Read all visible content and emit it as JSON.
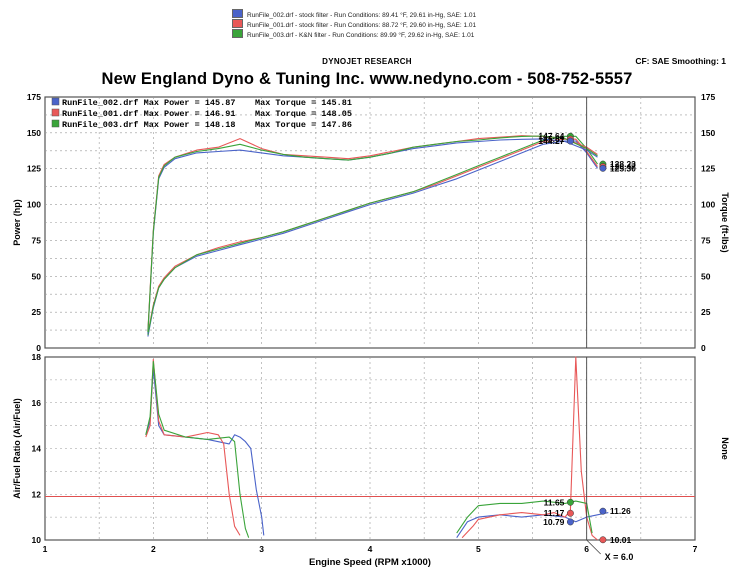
{
  "header": {
    "runs": [
      {
        "name": "RunFile_002.drf - stock filter - Run Conditions: 89.41 °F, 29.61 in-Hg, SAE: 1.01",
        "color": "#4a63c9"
      },
      {
        "name": "RunFile_001.drf - stock filter - Run Conditions: 88.72 °F, 29.60 in-Hg, SAE: 1.01",
        "color": "#e85858"
      },
      {
        "name": "RunFile_003.drf - K&N filter - Run Conditions: 89.99 °F, 29.62 in-Hg, SAE: 1.01",
        "color": "#3aa43a"
      }
    ],
    "brand": "DYNOJET RESEARCH",
    "settings": "CF: SAE  Smoothing: 1",
    "shop": "New England Dyno & Tuning Inc.  www.nedyno.com - 508-752-5557"
  },
  "chart_data": [
    {
      "type": "line",
      "ylabel": "Power (hp)",
      "y2label": "Torque (ft-lbs)",
      "xlim": [
        1,
        7
      ],
      "ylim": [
        0,
        175
      ],
      "y2lim": [
        0,
        175
      ],
      "yticks": [
        "0",
        "25",
        "50",
        "75",
        "100",
        "125",
        "150",
        "175"
      ],
      "grid": true,
      "legend_lines": [
        {
          "run": "RunFile_002.drf",
          "power": "Max Power = 145.87",
          "torque": "Max Torque = 145.81",
          "color": "#4a63c9"
        },
        {
          "run": "RunFile_001.drf",
          "power": "Max Power = 146.91",
          "torque": "Max Torque = 148.05",
          "color": "#e85858"
        },
        {
          "run": "RunFile_003.drf",
          "power": "Max Power = 148.18",
          "torque": "Max Torque = 147.86",
          "color": "#3aa43a"
        }
      ],
      "series": [
        {
          "kind": "power",
          "color": "#4a63c9",
          "x": [
            1.95,
            2.0,
            2.05,
            2.1,
            2.2,
            2.4,
            2.6,
            2.8,
            3.0,
            3.2,
            3.4,
            3.6,
            3.8,
            4.0,
            4.2,
            4.4,
            4.6,
            4.8,
            5.0,
            5.2,
            5.4,
            5.6,
            5.8,
            5.9,
            6.0,
            6.1
          ],
          "y": [
            8,
            28,
            42,
            48,
            56,
            64,
            68,
            72,
            76,
            80,
            85,
            90,
            95,
            100,
            104,
            108,
            113,
            118,
            124,
            130,
            136,
            142,
            144.3,
            144.3,
            136,
            125.3
          ]
        },
        {
          "kind": "power",
          "color": "#e85858",
          "x": [
            1.95,
            2.0,
            2.05,
            2.1,
            2.2,
            2.4,
            2.6,
            2.8,
            3.0,
            3.2,
            3.4,
            3.6,
            3.8,
            4.0,
            4.2,
            4.4,
            4.6,
            4.8,
            5.0,
            5.2,
            5.4,
            5.6,
            5.8,
            5.9,
            6.0,
            6.1
          ],
          "y": [
            10,
            30,
            43,
            49,
            57,
            65,
            70,
            74,
            77,
            81,
            86,
            91,
            96,
            101,
            105,
            109,
            114,
            120,
            126,
            132,
            138,
            144,
            145.6,
            145.6,
            137,
            126.5
          ]
        },
        {
          "kind": "power",
          "color": "#3aa43a",
          "x": [
            1.95,
            2.0,
            2.05,
            2.1,
            2.2,
            2.4,
            2.6,
            2.8,
            3.0,
            3.2,
            3.4,
            3.6,
            3.8,
            4.0,
            4.2,
            4.4,
            4.6,
            4.8,
            5.0,
            5.2,
            5.4,
            5.6,
            5.8,
            5.9,
            6.0,
            6.1
          ],
          "y": [
            9,
            29,
            42,
            48,
            56,
            65,
            69,
            73,
            77,
            81,
            86,
            91,
            96,
            101,
            105,
            109,
            115,
            121,
            127,
            133,
            139,
            145,
            147.6,
            147.6,
            139,
            128.2
          ]
        },
        {
          "kind": "torque",
          "color": "#4a63c9",
          "x": [
            1.95,
            2.0,
            2.05,
            2.1,
            2.2,
            2.4,
            2.6,
            2.8,
            3.0,
            3.2,
            3.4,
            3.6,
            3.8,
            4.0,
            4.2,
            4.4,
            4.6,
            4.8,
            5.0,
            5.2,
            5.4,
            5.6,
            5.8,
            6.0,
            6.1
          ],
          "y": [
            10,
            80,
            118,
            126,
            132,
            136,
            137,
            138,
            136,
            134,
            133,
            132,
            131,
            133,
            136,
            139,
            141,
            143,
            144,
            145,
            145.5,
            145.8,
            144,
            138,
            133
          ]
        },
        {
          "kind": "torque",
          "color": "#e85858",
          "x": [
            1.95,
            2.0,
            2.05,
            2.1,
            2.2,
            2.4,
            2.6,
            2.8,
            3.0,
            3.2,
            3.4,
            3.6,
            3.8,
            4.0,
            4.2,
            4.4,
            4.6,
            4.8,
            5.0,
            5.2,
            5.4,
            5.6,
            5.8,
            6.0,
            6.1
          ],
          "y": [
            12,
            82,
            120,
            128,
            133,
            138,
            140,
            146,
            139,
            135,
            134,
            133,
            132,
            134,
            137,
            140,
            142,
            144,
            146,
            147,
            148,
            147.5,
            146,
            140,
            135
          ]
        },
        {
          "kind": "torque",
          "color": "#3aa43a",
          "x": [
            1.95,
            2.0,
            2.05,
            2.1,
            2.2,
            2.4,
            2.6,
            2.8,
            3.0,
            3.2,
            3.4,
            3.6,
            3.8,
            4.0,
            4.2,
            4.4,
            4.6,
            4.8,
            5.0,
            5.2,
            5.4,
            5.6,
            5.8,
            6.0,
            6.1
          ],
          "y": [
            11,
            81,
            119,
            127,
            133,
            137,
            139,
            142,
            138,
            135,
            133,
            132,
            131,
            133,
            136,
            140,
            142,
            144,
            145,
            146.5,
            147.5,
            147.8,
            146,
            139,
            134
          ]
        }
      ],
      "markers": [
        {
          "x": 5.85,
          "y": 147.64,
          "label": "147.64",
          "color": "#3aa43a",
          "side": "left"
        },
        {
          "x": 5.85,
          "y": 145.61,
          "label": "145.61",
          "color": "#e85858",
          "side": "left"
        },
        {
          "x": 5.85,
          "y": 144.27,
          "label": "144.27",
          "color": "#4a63c9",
          "side": "left"
        },
        {
          "x": 6.15,
          "y": 128.23,
          "label": "128.23",
          "color": "#3aa43a",
          "side": "right"
        },
        {
          "x": 6.15,
          "y": 126.47,
          "label": "126.47",
          "color": "#e85858",
          "side": "right"
        },
        {
          "x": 6.15,
          "y": 125.3,
          "label": "125.30",
          "color": "#4a63c9",
          "side": "right"
        }
      ],
      "cursor_x": 6.0
    },
    {
      "type": "line",
      "ylabel": "Air/Fuel Ratio (Air/Fuel)",
      "y2label": "None",
      "xlabel": "Engine Speed (RPM x1000)",
      "xlim": [
        1,
        7
      ],
      "ylim": [
        10,
        18
      ],
      "xticks": [
        "1",
        "2",
        "3",
        "4",
        "5",
        "6",
        "7"
      ],
      "yticks": [
        "10",
        "12",
        "14",
        "16",
        "18"
      ],
      "grid": true,
      "reference_line": 11.9,
      "series": [
        {
          "segment": "low",
          "color": "#4a63c9",
          "x": [
            1.93,
            1.97,
            2.0,
            2.05,
            2.1,
            2.3,
            2.5,
            2.7,
            2.75,
            2.8,
            2.85,
            2.9,
            2.95,
            3.0,
            3.02
          ],
          "y": [
            14.6,
            15.2,
            17.5,
            15.0,
            14.6,
            14.5,
            14.4,
            14.2,
            14.6,
            14.5,
            14.3,
            14.0,
            12.2,
            11.0,
            10.2
          ]
        },
        {
          "segment": "low",
          "color": "#e85858",
          "x": [
            1.93,
            1.97,
            2.0,
            2.05,
            2.1,
            2.3,
            2.5,
            2.6,
            2.65,
            2.7,
            2.75,
            2.8
          ],
          "y": [
            14.5,
            15.0,
            17.9,
            15.2,
            14.6,
            14.5,
            14.7,
            14.6,
            14.2,
            12.0,
            10.6,
            10.2
          ]
        },
        {
          "segment": "low",
          "color": "#3aa43a",
          "x": [
            1.93,
            1.97,
            2.0,
            2.05,
            2.1,
            2.3,
            2.5,
            2.7,
            2.75,
            2.8,
            2.85,
            2.88
          ],
          "y": [
            14.6,
            15.4,
            17.8,
            15.5,
            14.8,
            14.5,
            14.4,
            14.5,
            14.3,
            12.0,
            10.5,
            10.1
          ]
        },
        {
          "segment": "high",
          "color": "#4a63c9",
          "x": [
            4.8,
            4.9,
            5.0,
            5.2,
            5.4,
            5.6,
            5.8,
            5.9,
            6.0,
            6.1,
            6.2
          ],
          "y": [
            10.1,
            10.8,
            11.0,
            11.1,
            11.0,
            11.1,
            11.0,
            10.8,
            11.0,
            11.1,
            11.2
          ]
        },
        {
          "segment": "high",
          "color": "#e85858",
          "x": [
            4.85,
            4.95,
            5.0,
            5.2,
            5.4,
            5.6,
            5.7,
            5.8,
            5.85,
            5.9,
            5.95,
            6.0,
            6.05,
            6.1
          ],
          "y": [
            10.1,
            10.6,
            10.9,
            11.1,
            11.2,
            11.1,
            11.2,
            11.0,
            11.3,
            18.0,
            13.0,
            11.0,
            10.2,
            10.0
          ]
        },
        {
          "segment": "high",
          "color": "#3aa43a",
          "x": [
            4.8,
            4.9,
            5.0,
            5.2,
            5.4,
            5.6,
            5.8,
            5.9,
            6.0,
            6.05
          ],
          "y": [
            10.3,
            11.0,
            11.5,
            11.6,
            11.6,
            11.7,
            11.6,
            11.7,
            11.6,
            10.3
          ]
        }
      ],
      "markers": [
        {
          "x": 5.85,
          "y": 11.65,
          "label": "11.65",
          "color": "#3aa43a",
          "side": "left"
        },
        {
          "x": 5.85,
          "y": 11.17,
          "label": "11.17",
          "color": "#e85858",
          "side": "left"
        },
        {
          "x": 5.85,
          "y": 10.79,
          "label": "10.79",
          "color": "#4a63c9",
          "side": "left"
        },
        {
          "x": 6.15,
          "y": 11.26,
          "label": "11.26",
          "color": "#4a63c9",
          "side": "right"
        },
        {
          "x": 6.15,
          "y": 10.01,
          "label": "10.01",
          "color": "#e85858",
          "side": "right"
        }
      ],
      "cursor_x": 6.0,
      "cursor_label": "X = 6.0"
    }
  ]
}
